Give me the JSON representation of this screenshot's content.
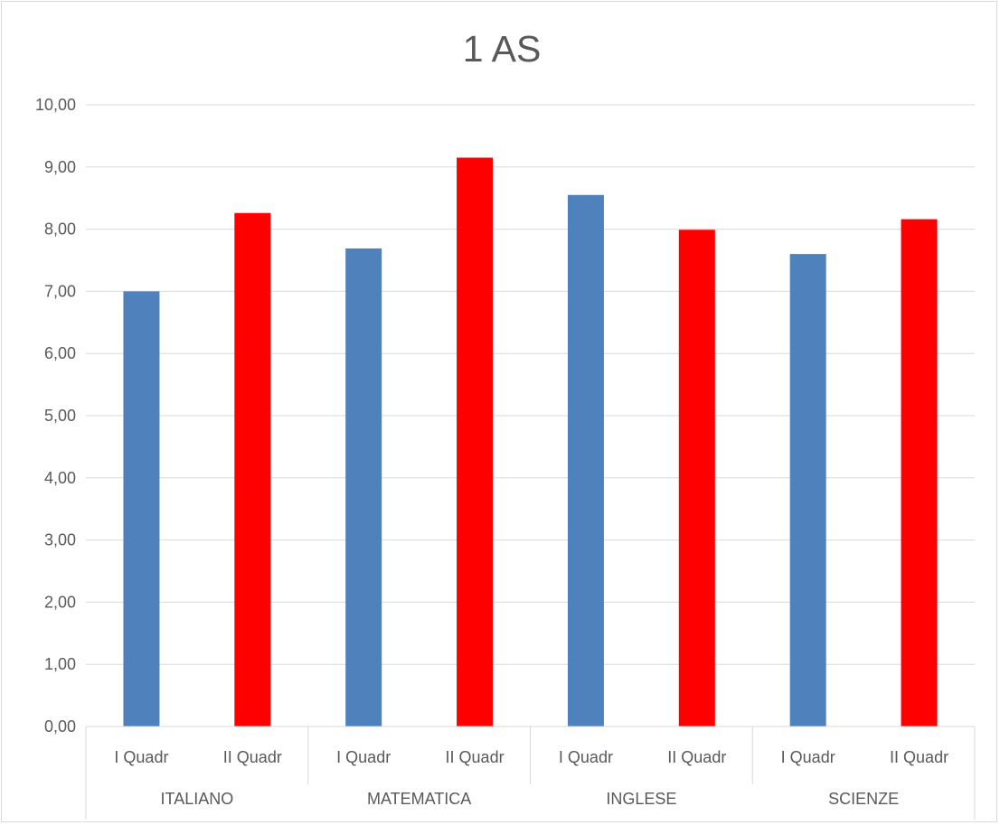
{
  "chart_data": {
    "type": "bar",
    "title": "1 AS",
    "xlabel": "",
    "ylabel": "",
    "ylim": [
      0,
      10
    ],
    "ytick_step": 1,
    "ytick_labels": [
      "0,00",
      "1,00",
      "2,00",
      "3,00",
      "4,00",
      "5,00",
      "6,00",
      "7,00",
      "8,00",
      "9,00",
      "10,00"
    ],
    "grid": true,
    "legend": "none",
    "groups": [
      "ITALIANO",
      "MATEMATICA",
      "INGLESE",
      "SCIENZE"
    ],
    "categories": [
      "I Quadr",
      "II Quadr"
    ],
    "values": [
      [
        7.0,
        8.26
      ],
      [
        7.69,
        9.15
      ],
      [
        8.55,
        7.99
      ],
      [
        7.6,
        8.16
      ]
    ],
    "colors": [
      "#4f81bd",
      "#ff0000"
    ]
  }
}
